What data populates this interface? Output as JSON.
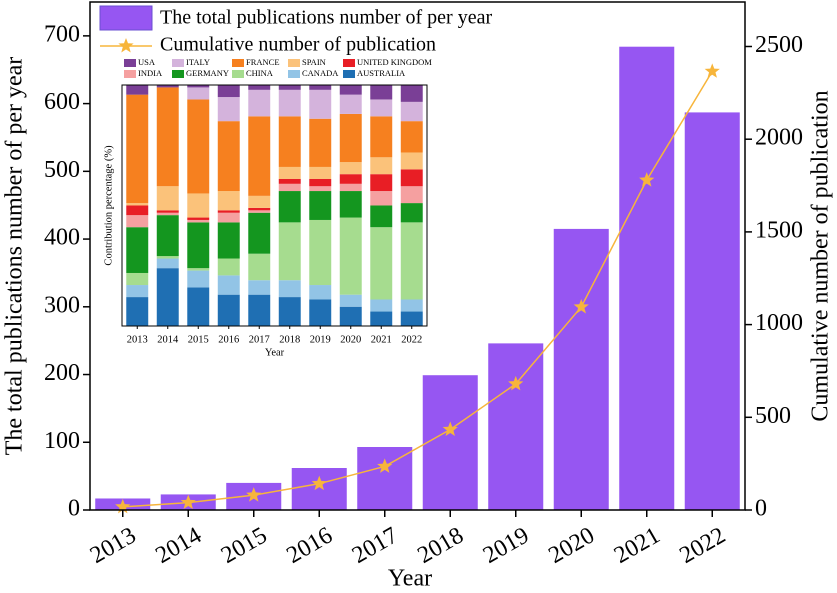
{
  "chart_data": [
    {
      "type": "bar",
      "xlabel": "Year",
      "ylabel": "The total publications number of per year",
      "y2label": "Cumulative number of publication",
      "categories": [
        "2013",
        "2014",
        "2015",
        "2016",
        "2017",
        "2018",
        "2019",
        "2020",
        "2021",
        "2022"
      ],
      "series": [
        {
          "name": "The total publications number of per year",
          "color": "#9656f2",
          "values": [
            17,
            23,
            40,
            62,
            93,
            199,
            246,
            415,
            684,
            587
          ]
        },
        {
          "name": "Cumulative number of publication",
          "color": "#f7b53b",
          "type": "line",
          "axis": "y2",
          "values": [
            17,
            40,
            80,
            142,
            235,
            434,
            680,
            1095,
            1779,
            2366
          ]
        }
      ],
      "ylim": [
        0,
        750
      ],
      "yticks": [
        0,
        100,
        200,
        300,
        400,
        500,
        600,
        700
      ],
      "y2lim": [
        0,
        2740
      ],
      "y2ticks": [
        0,
        500,
        1000,
        1500,
        2000,
        2500
      ],
      "legend": "upper left"
    },
    {
      "type": "stacked_bar",
      "xlabel": "Year",
      "ylabel": "Contribution percentage (%)",
      "categories": [
        "2013",
        "2014",
        "2015",
        "2016",
        "2017",
        "2018",
        "2019",
        "2020",
        "2021",
        "2022"
      ],
      "ylim": [
        0,
        100
      ],
      "legend": "top",
      "series": [
        {
          "name": "AUSTRALIA",
          "color": "#1f6fb3",
          "values": [
            12,
            24,
            16,
            13,
            13,
            12,
            11,
            8,
            6,
            6
          ]
        },
        {
          "name": "CANADA",
          "color": "#92c4e6",
          "values": [
            5,
            4,
            7,
            8,
            6,
            7,
            6,
            5,
            5,
            5
          ]
        },
        {
          "name": "CHINA",
          "color": "#a6dc8f",
          "values": [
            5,
            1,
            1,
            7,
            11,
            24,
            27,
            32,
            30,
            32
          ]
        },
        {
          "name": "GERMANY",
          "color": "#14961f",
          "values": [
            19,
            17,
            19,
            15,
            17,
            13,
            12,
            11,
            9,
            8
          ]
        },
        {
          "name": "INDIA",
          "color": "#f5a0a0",
          "values": [
            5,
            1,
            1,
            4,
            1,
            3,
            2,
            3,
            6,
            7
          ]
        },
        {
          "name": "UNITED KINGDOM",
          "color": "#e81e25",
          "values": [
            4,
            1,
            1,
            1,
            1,
            2,
            3,
            4,
            7,
            7
          ]
        },
        {
          "name": "SPAIN",
          "color": "#fbc27a",
          "values": [
            1,
            10,
            10,
            8,
            5,
            5,
            5,
            5,
            7,
            7
          ]
        },
        {
          "name": "FRANCE",
          "color": "#f6801f",
          "values": [
            45,
            41,
            39,
            29,
            33,
            21,
            20,
            20,
            17,
            13
          ]
        },
        {
          "name": "ITALY",
          "color": "#d4b3dc",
          "values": [
            0,
            0,
            5,
            10,
            11,
            11,
            12,
            8,
            7,
            8
          ]
        },
        {
          "name": "USA",
          "color": "#7a3f96",
          "values": [
            4,
            1,
            1,
            5,
            2,
            2,
            2,
            4,
            6,
            7
          ]
        }
      ]
    }
  ]
}
